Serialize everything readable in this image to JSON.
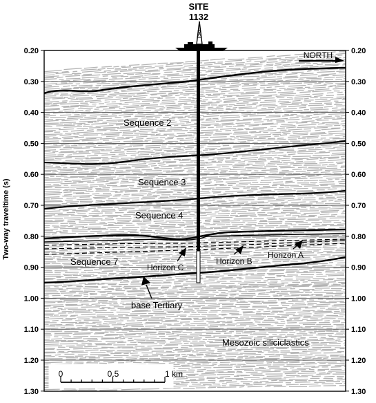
{
  "site": {
    "line1": "SITE",
    "line2": "1132"
  },
  "direction": "NORTH",
  "y_axis": {
    "label": "Two-way traveltime (s)",
    "ticks": [
      "0.20",
      "0.30",
      "0.40",
      "0.50",
      "0.60",
      "0.70",
      "0.80",
      "0.90",
      "1.00",
      "1.10",
      "1.20",
      "1.30"
    ]
  },
  "sequences": [
    "Sequence 2",
    "Sequence 3",
    "Sequence 4",
    "Sequence 7"
  ],
  "horizons": [
    "Horizon C",
    "Horizon B",
    "Horizon A"
  ],
  "base_label": "base Tertiary",
  "mesozoic_label": "Mesozoic siliciclastics",
  "scale_bar": {
    "start": "0",
    "mid": "0.5",
    "end": "1 km"
  },
  "colors": {
    "seismic_gray": "#b4b4b4",
    "gridline": "#555555",
    "reflector": "#000000"
  }
}
